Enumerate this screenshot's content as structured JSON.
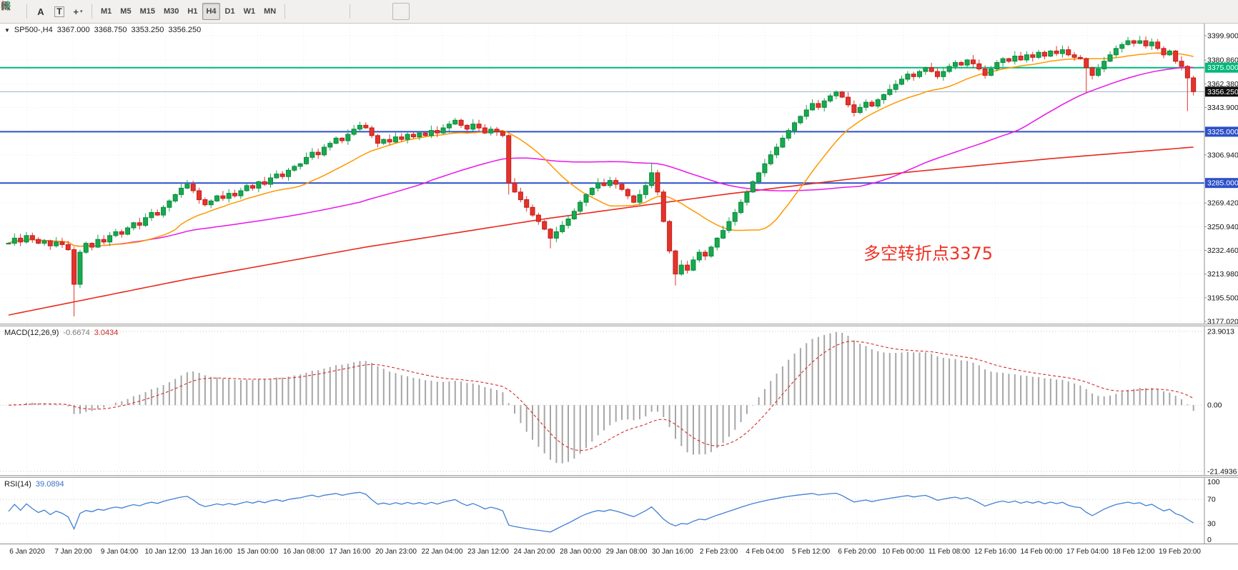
{
  "toolbar": {
    "items": [
      {
        "type": "icon",
        "name": "tick-chart-icon",
        "glyph": "grid"
      },
      {
        "type": "sep"
      },
      {
        "type": "icon",
        "name": "insert-text-icon",
        "glyph": "A"
      },
      {
        "type": "icon",
        "name": "insert-label-icon",
        "glyph": "T"
      },
      {
        "type": "icon",
        "name": "crosshair-icon",
        "glyph": "cross",
        "dropdown": true
      },
      {
        "type": "sep"
      },
      {
        "type": "tf",
        "label": "M1"
      },
      {
        "type": "tf",
        "label": "M5"
      },
      {
        "type": "tf",
        "label": "M15"
      },
      {
        "type": "tf",
        "label": "M30"
      },
      {
        "type": "tf",
        "label": "H1"
      },
      {
        "type": "tf",
        "label": "H4",
        "active": true
      },
      {
        "type": "tf",
        "label": "D1"
      },
      {
        "type": "tf",
        "label": "W1"
      },
      {
        "type": "tf",
        "label": "MN"
      },
      {
        "type": "sep"
      },
      {
        "type": "icon",
        "name": "bar-chart-icon",
        "glyph": "bars"
      },
      {
        "type": "icon",
        "name": "candle-chart-icon",
        "glyph": "candles"
      },
      {
        "type": "icon",
        "name": "line-chart-icon",
        "glyph": "line"
      },
      {
        "type": "sep"
      },
      {
        "type": "icon",
        "name": "zoom-in-icon",
        "glyph": "zin"
      },
      {
        "type": "icon",
        "name": "zoom-out-icon",
        "glyph": "zout"
      },
      {
        "type": "icon",
        "name": "grid-icon",
        "glyph": "gridlines"
      }
    ],
    "active_timeframe": "H4"
  },
  "price_panel": {
    "title": {
      "symbol_timeframe": "SP500-,H4",
      "open": "3367.000",
      "high": "3368.750",
      "low": "3353.250",
      "close": "3356.250"
    },
    "annotation": {
      "text": "多空转折点3375",
      "color": "#ee3124"
    },
    "axis_labels": [
      {
        "text": "3399.900",
        "value": 3399.9
      },
      {
        "text": "3380.860",
        "value": 3380.86
      },
      {
        "text": "3362.380",
        "value": 3362.38
      },
      {
        "text": "3343.900",
        "value": 3343.9
      },
      {
        "text": "3306.940",
        "value": 3306.94
      },
      {
        "text": "3269.420",
        "value": 3269.42
      },
      {
        "text": "3250.940",
        "value": 3250.94
      },
      {
        "text": "3232.460",
        "value": 3232.46
      },
      {
        "text": "3213.980",
        "value": 3213.98
      },
      {
        "text": "3195.500",
        "value": 3195.5
      },
      {
        "text": "3177.020",
        "value": 3177.02
      }
    ],
    "hlines": [
      {
        "price": 3375.0,
        "tag": "3375.000",
        "color": "#00b87a",
        "width": 2
      },
      {
        "price": 3325.0,
        "tag": "3325.000",
        "color": "#2d50c8",
        "width": 2
      },
      {
        "price": 3285.0,
        "tag": "3285.000",
        "color": "#2d50c8",
        "width": 2
      }
    ],
    "current_price": {
      "value": 3356.25,
      "tag": "3356.250",
      "line_color": "#9db3c8",
      "tag_color": "#101010"
    }
  },
  "chart_data": {
    "type": "candlestick",
    "symbol": "SP500-",
    "timeframe": "H4",
    "first_open": 3238,
    "closes": [
      3238,
      3242,
      3239,
      3244,
      3241,
      3238,
      3240,
      3236,
      3239,
      3237,
      3233,
      3206,
      3231,
      3238,
      3235,
      3241,
      3239,
      3244,
      3247,
      3245,
      3250,
      3254,
      3252,
      3258,
      3262,
      3260,
      3266,
      3271,
      3276,
      3281,
      3284,
      3279,
      3272,
      3268,
      3271,
      3275,
      3273,
      3277,
      3275,
      3279,
      3283,
      3281,
      3286,
      3284,
      3289,
      3292,
      3290,
      3295,
      3298,
      3300,
      3305,
      3309,
      3307,
      3313,
      3316,
      3320,
      3318,
      3323,
      3327,
      3330,
      3328,
      3322,
      3316,
      3319,
      3317,
      3321,
      3319,
      3323,
      3321,
      3324,
      3322,
      3326,
      3324,
      3328,
      3331,
      3334,
      3330,
      3327,
      3331,
      3328,
      3324,
      3327,
      3325,
      3322,
      3285,
      3278,
      3272,
      3266,
      3260,
      3255,
      3249,
      3242,
      3247,
      3252,
      3257,
      3263,
      3270,
      3276,
      3281,
      3285,
      3283,
      3287,
      3284,
      3280,
      3275,
      3270,
      3276,
      3283,
      3293,
      3278,
      3255,
      3232,
      3214,
      3221,
      3217,
      3225,
      3231,
      3228,
      3235,
      3242,
      3248,
      3255,
      3262,
      3270,
      3278,
      3286,
      3293,
      3300,
      3307,
      3313,
      3320,
      3326,
      3332,
      3337,
      3342,
      3347,
      3344,
      3349,
      3353,
      3356,
      3352,
      3346,
      3340,
      3344,
      3348,
      3345,
      3350,
      3354,
      3358,
      3362,
      3366,
      3370,
      3368,
      3372,
      3375,
      3372,
      3368,
      3372,
      3376,
      3379,
      3377,
      3381,
      3378,
      3374,
      3369,
      3374,
      3379,
      3382,
      3380,
      3384,
      3381,
      3385,
      3383,
      3387,
      3384,
      3388,
      3386,
      3389,
      3385,
      3383,
      3382,
      3375,
      3369,
      3374,
      3380,
      3385,
      3390,
      3393,
      3396,
      3394,
      3396,
      3392,
      3395,
      3390,
      3385,
      3388,
      3380,
      3376,
      3367,
      3356.25
    ],
    "special_bars": {
      "11": [
        3233,
        3235,
        3181,
        3206
      ],
      "12": [
        3206,
        3233,
        3203,
        3231
      ],
      "84": [
        3322,
        3323,
        3276,
        3285
      ],
      "91": [
        3249,
        3250,
        3234,
        3242
      ],
      "108": [
        3283,
        3301,
        3281,
        3293
      ],
      "112": [
        3232,
        3233,
        3205,
        3214
      ],
      "181": [
        3382,
        3383,
        3356,
        3375
      ],
      "188": [
        3393,
        3399,
        3392,
        3396
      ],
      "198": [
        3376,
        3377,
        3341,
        3367
      ],
      "199": [
        3367,
        3368.75,
        3353.25,
        3356.25
      ]
    },
    "ma_fast_period": 18,
    "ma_mid_period": 60,
    "ma_slow_anchors": [
      [
        0,
        3182
      ],
      [
        30,
        3210
      ],
      [
        60,
        3235
      ],
      [
        90,
        3257
      ],
      [
        120,
        3276
      ],
      [
        150,
        3293
      ],
      [
        175,
        3304
      ],
      [
        199,
        3313
      ]
    ],
    "colors": {
      "up": "#17a94f",
      "up_border": "#0c8a3e",
      "down": "#e5332c",
      "down_border": "#bf1f1a",
      "ma_fast": "#ff9800",
      "ma_mid": "#e816e8",
      "ma_slow": "#e8291c"
    }
  },
  "macd_panel": {
    "label": "MACD(12,26,9)",
    "value_main": "-0.6674",
    "value_signal": "3.0434",
    "params": {
      "fast": 12,
      "slow": 26,
      "signal": 9
    },
    "axis_labels": [
      {
        "text": "23.9013",
        "value": 23.9013
      },
      {
        "text": "0.00",
        "value": 0
      },
      {
        "text": "-21.4936",
        "value": -21.4936
      }
    ],
    "colors": {
      "histogram": "#a6a6a6",
      "signal": "#d42a2a"
    }
  },
  "rsi_panel": {
    "label": "RSI(14)",
    "value": "39.0894",
    "period": 14,
    "levels": [
      70,
      30
    ],
    "axis_labels": [
      {
        "text": "100",
        "value": 100
      },
      {
        "text": "70",
        "value": 70
      },
      {
        "text": "30",
        "value": 30
      },
      {
        "text": "0",
        "value": 0
      }
    ],
    "color": "#3f7fd6"
  },
  "time_axis": {
    "labels": [
      "6 Jan 2020",
      "7 Jan 20:00",
      "9 Jan 04:00",
      "10 Jan 12:00",
      "13 Jan 16:00",
      "15 Jan 00:00",
      "16 Jan 08:00",
      "17 Jan 16:00",
      "20 Jan 23:00",
      "22 Jan 04:00",
      "23 Jan 12:00",
      "24 Jan 20:00",
      "28 Jan 00:00",
      "29 Jan 08:00",
      "30 Jan 16:00",
      "2 Feb 23:00",
      "4 Feb 04:00",
      "5 Feb 12:00",
      "6 Feb 20:00",
      "10 Feb 00:00",
      "11 Feb 08:00",
      "12 Feb 16:00",
      "14 Feb 00:00",
      "17 Feb 04:00",
      "18 Feb 12:00",
      "19 Feb 20:00"
    ]
  }
}
